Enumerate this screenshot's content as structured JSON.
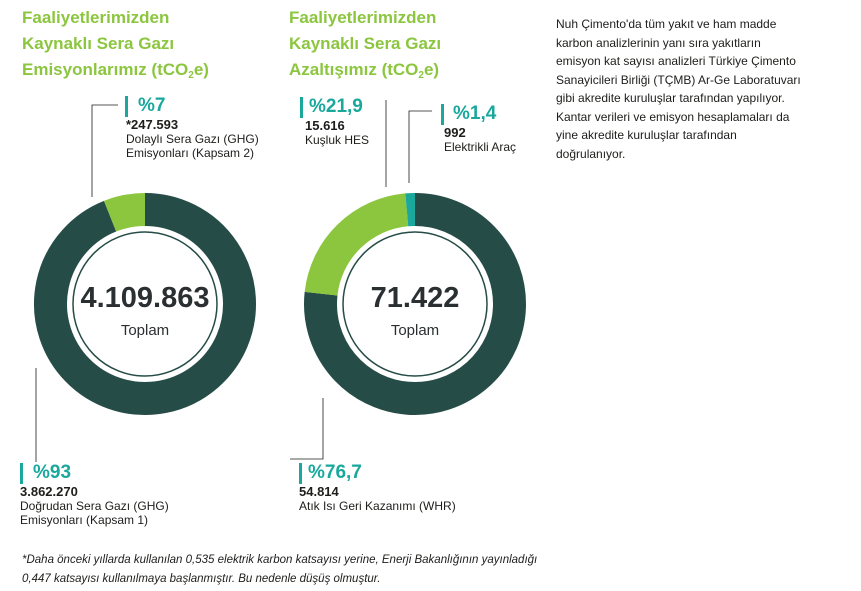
{
  "colors": {
    "green": "#8cc63f",
    "dark": "#264c47",
    "teal": "#1aa89d",
    "text": "#1d1d1b"
  },
  "chart1": {
    "title": [
      "Faaliyetlerimizden",
      "Kaynaklı Sera Gazı",
      "Emisyonlarımız (tCO",
      "2",
      "e)"
    ],
    "total": "4.109.863",
    "total_label": "Toplam",
    "slices": [
      {
        "pct": "%7",
        "value": "*247.593",
        "label1": "Dolaylı Sera Gazı (GHG)",
        "label2": "Emisyonları (Kapsam 2)"
      },
      {
        "pct": "%93",
        "value": "3.862.270",
        "label1": "Doğrudan Sera Gazı (GHG)",
        "label2": "Emisyonları (Kapsam 1)"
      }
    ]
  },
  "chart2": {
    "title": [
      "Faaliyetlerimizden",
      "Kaynaklı Sera Gazı",
      "Azaltışımız (tCO",
      "2",
      "e)"
    ],
    "total": "71.422",
    "total_label": "Toplam",
    "slices": [
      {
        "pct": "%21,9",
        "value": "15.616",
        "label1": "Kuşluk HES"
      },
      {
        "pct": "%1,4",
        "value": "992",
        "label1": "Elektrikli Araç"
      },
      {
        "pct": "%76,7",
        "value": "54.814",
        "label1": "Atık Isı Geri Kazanımı (WHR)"
      }
    ]
  },
  "chart_data": [
    {
      "type": "pie",
      "title": "Faaliyetlerimizden Kaynaklı Sera Gazı Emisyonlarımız (tCO2e)",
      "total": 4109863,
      "categories": [
        "Dolaylı Sera Gazı (GHG) Emisyonları (Kapsam 2)",
        "Doğrudan Sera Gazı (GHG) Emisyonları (Kapsam 1)"
      ],
      "values": [
        247593,
        3862270
      ],
      "percentages": [
        7,
        93
      ],
      "colors": [
        "#8cc63f",
        "#264c47"
      ]
    },
    {
      "type": "pie",
      "title": "Faaliyetlerimizden Kaynaklı Sera Gazı Azaltışımız (tCO2e)",
      "total": 71422,
      "categories": [
        "Kuşluk HES",
        "Elektrikli Araç",
        "Atık Isı Geri Kazanımı (WHR)"
      ],
      "values": [
        15616,
        992,
        54814
      ],
      "percentages": [
        21.9,
        1.4,
        76.7
      ],
      "colors": [
        "#8cc63f",
        "#1aa89d",
        "#264c47"
      ]
    }
  ],
  "side_note": "Nuh Çimento'da tüm yakıt ve ham madde karbon analizlerinin yanı sıra yakıtların emisyon kat sayısı analizleri Türkiye Çimento Sanayicileri Birliği (TÇMB) Ar-Ge Laboratuvarı gibi akredite kuruluşlar tarafından yapılıyor. Kantar verileri ve emisyon hesaplamaları da yine akredite kuruluşlar tarafından doğrulanıyor.",
  "footnote": "*Daha önceki yıllarda kullanılan 0,535 elektrik karbon katsayısı yerine, Enerji Bakanlığının yayınladığı 0,447 katsayısı kullanılmaya başlanmıştır. Bu nedenle düşüş olmuştur."
}
